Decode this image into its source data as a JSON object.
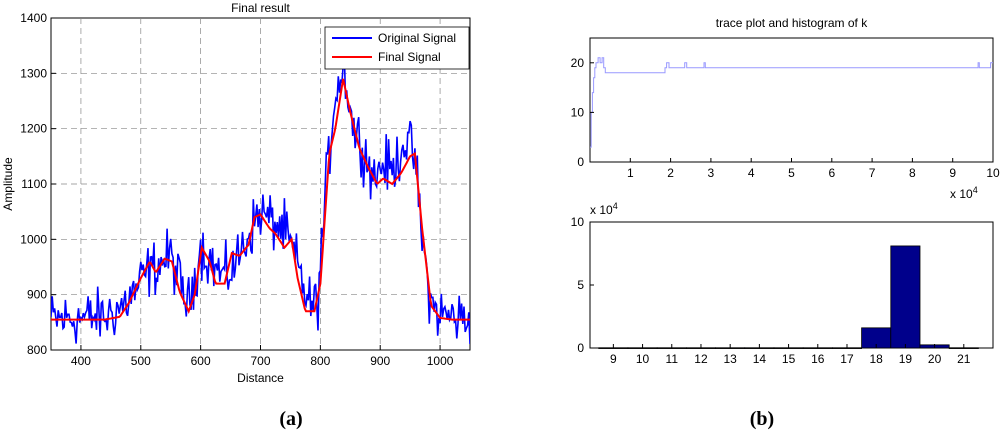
{
  "panels": {
    "a_label": "(a)",
    "b_label": "(b)"
  },
  "chart_data": [
    {
      "type": "line",
      "title": "Final result",
      "xlabel": "Distance",
      "ylabel": "Amplitude",
      "xlim": [
        350,
        1050
      ],
      "ylim": [
        800,
        1400
      ],
      "xticks": [
        400,
        500,
        600,
        700,
        800,
        900,
        1000
      ],
      "yticks": [
        800,
        900,
        1000,
        1100,
        1200,
        1300,
        1400
      ],
      "grid": true,
      "legend": "top-right",
      "series": [
        {
          "name": "Original Signal",
          "color": "#0000ff",
          "noise": 38,
          "x": [
            350,
            440,
            470,
            490,
            510,
            530,
            550,
            570,
            580,
            600,
            620,
            640,
            660,
            680,
            700,
            720,
            740,
            760,
            780,
            795,
            810,
            825,
            840,
            855,
            870,
            890,
            905,
            920,
            940,
            958,
            970,
            985,
            1000,
            1020,
            1050
          ],
          "y": [
            855,
            860,
            880,
            905,
            940,
            955,
            970,
            905,
            880,
            985,
            955,
            930,
            960,
            1010,
            1050,
            1030,
            1015,
            960,
            885,
            880,
            1100,
            1270,
            1310,
            1200,
            1170,
            1110,
            1140,
            1120,
            1180,
            1150,
            1000,
            880,
            865,
            860,
            855
          ]
        },
        {
          "name": "Final Signal",
          "color": "#ff0000",
          "noise": 0,
          "x": [
            350,
            440,
            465,
            480,
            500,
            515,
            525,
            540,
            552,
            565,
            580,
            590,
            602,
            615,
            625,
            640,
            652,
            665,
            680,
            690,
            700,
            715,
            725,
            740,
            752,
            762,
            775,
            790,
            800,
            815,
            825,
            838,
            850,
            865,
            880,
            895,
            905,
            920,
            935,
            950,
            958,
            970,
            985,
            1000,
            1020,
            1050
          ],
          "y": [
            855,
            855,
            860,
            885,
            930,
            960,
            940,
            965,
            960,
            905,
            870,
            900,
            985,
            960,
            920,
            920,
            975,
            970,
            990,
            1040,
            1045,
            1020,
            1010,
            985,
            1000,
            930,
            870,
            870,
            920,
            1155,
            1200,
            1290,
            1230,
            1165,
            1130,
            1100,
            1110,
            1100,
            1120,
            1150,
            1155,
            1020,
            880,
            858,
            855,
            855
          ]
        }
      ]
    },
    {
      "type": "line",
      "title": "trace plot and histogram of k",
      "xlim": [
        0,
        100000
      ],
      "ylim": [
        0,
        25
      ],
      "xticks": [
        1,
        2,
        3,
        4,
        5,
        6,
        7,
        8,
        9,
        10
      ],
      "yticks": [
        0,
        10,
        20
      ],
      "x_multiplier_label": "x 10^4",
      "series": [
        {
          "name": "k",
          "color": "#9999ff",
          "x": [
            0,
            300,
            600,
            900,
            1200,
            1500,
            2000,
            2500,
            3000,
            3400,
            3800,
            4200,
            18000,
            18600,
            19000,
            19600,
            20000,
            22000,
            23500,
            24000,
            28000,
            28300,
            28600,
            96000,
            96300,
            96600,
            99000,
            99400,
            100000
          ],
          "y": [
            3,
            10,
            14,
            17,
            19,
            20,
            21,
            20,
            21,
            19,
            18,
            18,
            18,
            19,
            20,
            19,
            19,
            19,
            20,
            19,
            19,
            20,
            19,
            19,
            20,
            19,
            19,
            20,
            20
          ]
        }
      ]
    },
    {
      "type": "bar",
      "title": "",
      "xlim": [
        8.2,
        22
      ],
      "ylim": [
        0,
        10
      ],
      "y_multiplier_label": "x 10^4",
      "yticks": [
        0,
        5,
        10
      ],
      "categories": [
        9,
        10,
        11,
        12,
        13,
        14,
        15,
        16,
        17,
        18,
        19,
        20,
        21
      ],
      "values": [
        0.02,
        0.02,
        0.02,
        0.02,
        0.02,
        0.02,
        0.02,
        0.02,
        0.02,
        1.6,
        8.1,
        0.25,
        0.02
      ],
      "color": "#00008b"
    }
  ]
}
